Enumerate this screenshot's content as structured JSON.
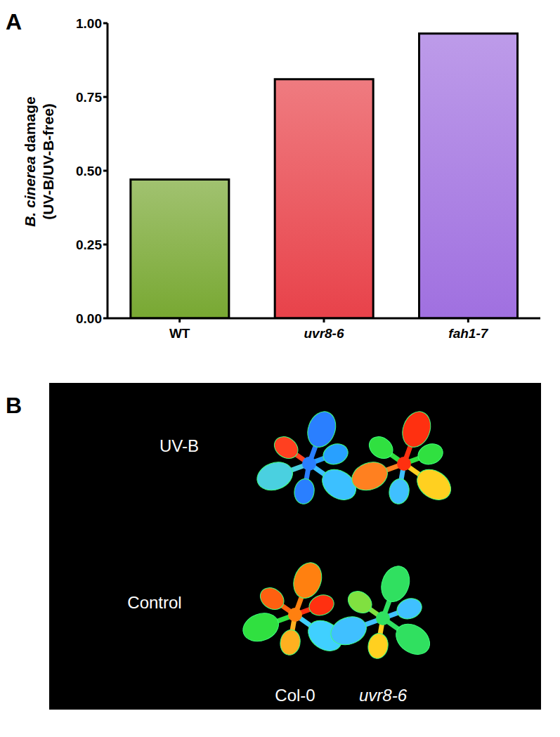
{
  "panel_labels": [
    "A",
    "B"
  ],
  "chart_data": {
    "type": "bar",
    "categories": [
      "WT",
      "uvr8-6",
      "fah1-7"
    ],
    "values": [
      0.47,
      0.81,
      0.965
    ],
    "colors": [
      "#78a832",
      "#e8424a",
      "#a070e0"
    ],
    "y_label": "B. cinerea damage (UV-B/UV-B-free)",
    "ylim": [
      0,
      1
    ],
    "yticks": [
      {
        "value": 0,
        "label": "0.00"
      },
      {
        "value": 0.25,
        "label": "0.25"
      },
      {
        "value": 0.5,
        "label": "0.50"
      },
      {
        "value": 0.75,
        "label": "0.75"
      },
      {
        "value": 1,
        "label": "1.00"
      }
    ]
  },
  "panel_b": {
    "row_labels": [
      "UV-B",
      "Control"
    ],
    "column_labels": [
      "Col-0",
      "uvr8-6"
    ]
  }
}
